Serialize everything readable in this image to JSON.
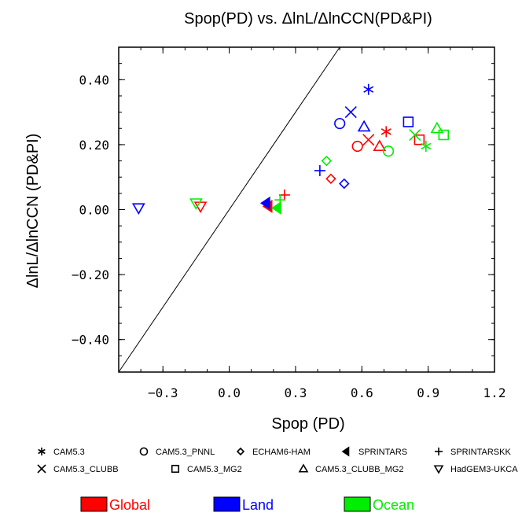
{
  "chart_data": {
    "type": "scatter",
    "title": "Spop(PD) vs.  ΔlnL/ΔlnCCN(PD&PI)",
    "xlabel": "Spop (PD)",
    "ylabel": "ΔlnL/ΔlnCCN (PD&PI)",
    "xlim": [
      -0.5,
      1.2
    ],
    "ylim": [
      -0.5,
      0.5
    ],
    "x_ticks": [
      -0.3,
      0.0,
      0.3,
      0.6,
      0.9,
      1.2
    ],
    "x_tick_labels": [
      "−0.3",
      "0.0",
      "0.3",
      "0.6",
      "0.9",
      "1.2"
    ],
    "y_ticks": [
      0.4,
      0.2,
      0.0,
      -0.2,
      -0.4
    ],
    "y_tick_labels": [
      "0.40",
      "0.20",
      "0.00",
      "−0.20",
      "−0.40"
    ],
    "reference_line": "1:1",
    "grid": false,
    "markers": [
      {
        "model": "CAM5.3",
        "symbol": "asterisk"
      },
      {
        "model": "CAM5.3_PNNL",
        "symbol": "circle"
      },
      {
        "model": "ECHAM6-HAM",
        "symbol": "diamond"
      },
      {
        "model": "SPRINTARS",
        "symbol": "filled-triangle-left"
      },
      {
        "model": "SPRINTARSKK",
        "symbol": "plus"
      },
      {
        "model": "CAM5.3_CLUBB",
        "symbol": "cross"
      },
      {
        "model": "CAM5.3_MG2",
        "symbol": "square"
      },
      {
        "model": "CAM5.3_CLUBB_MG2",
        "symbol": "triangle-up"
      },
      {
        "model": "HadGEM3-UKCA",
        "symbol": "triangle-down"
      }
    ],
    "series": [
      {
        "name": "Global",
        "color": "#ff0000",
        "points": [
          {
            "model": "CAM5.3",
            "x": 0.71,
            "y": 0.24
          },
          {
            "model": "CAM5.3_PNNL",
            "x": 0.58,
            "y": 0.195
          },
          {
            "model": "ECHAM6-HAM",
            "x": 0.46,
            "y": 0.095
          },
          {
            "model": "SPRINTARS",
            "x": 0.18,
            "y": 0.01
          },
          {
            "model": "SPRINTARSKK",
            "x": 0.25,
            "y": 0.045
          },
          {
            "model": "CAM5.3_CLUBB",
            "x": 0.63,
            "y": 0.215
          },
          {
            "model": "CAM5.3_MG2",
            "x": 0.86,
            "y": 0.215
          },
          {
            "model": "CAM5.3_CLUBB_MG2",
            "x": 0.68,
            "y": 0.195
          },
          {
            "model": "HadGEM3-UKCA",
            "x": -0.13,
            "y": 0.01
          }
        ]
      },
      {
        "name": "Land",
        "color": "#0000ff",
        "points": [
          {
            "model": "CAM5.3",
            "x": 0.63,
            "y": 0.37
          },
          {
            "model": "CAM5.3_PNNL",
            "x": 0.5,
            "y": 0.265
          },
          {
            "model": "ECHAM6-HAM",
            "x": 0.52,
            "y": 0.08
          },
          {
            "model": "SPRINTARS",
            "x": 0.17,
            "y": 0.02
          },
          {
            "model": "SPRINTARSKK",
            "x": 0.41,
            "y": 0.12
          },
          {
            "model": "CAM5.3_CLUBB",
            "x": 0.55,
            "y": 0.3
          },
          {
            "model": "CAM5.3_MG2",
            "x": 0.81,
            "y": 0.27
          },
          {
            "model": "CAM5.3_CLUBB_MG2",
            "x": 0.61,
            "y": 0.255
          },
          {
            "model": "HadGEM3-UKCA",
            "x": -0.41,
            "y": 0.005
          }
        ]
      },
      {
        "name": "Ocean",
        "color": "#00ee00",
        "points": [
          {
            "model": "CAM5.3",
            "x": 0.89,
            "y": 0.195
          },
          {
            "model": "CAM5.3_PNNL",
            "x": 0.72,
            "y": 0.18
          },
          {
            "model": "ECHAM6-HAM",
            "x": 0.44,
            "y": 0.15
          },
          {
            "model": "SPRINTARS",
            "x": 0.22,
            "y": 0.005
          },
          {
            "model": "SPRINTARSKK",
            "x": 0.23,
            "y": 0.03
          },
          {
            "model": "CAM5.3_CLUBB",
            "x": 0.84,
            "y": 0.23
          },
          {
            "model": "CAM5.3_MG2",
            "x": 0.97,
            "y": 0.23
          },
          {
            "model": "CAM5.3_CLUBB_MG2",
            "x": 0.94,
            "y": 0.25
          },
          {
            "model": "HadGEM3-UKCA",
            "x": -0.15,
            "y": 0.02
          }
        ]
      }
    ]
  }
}
